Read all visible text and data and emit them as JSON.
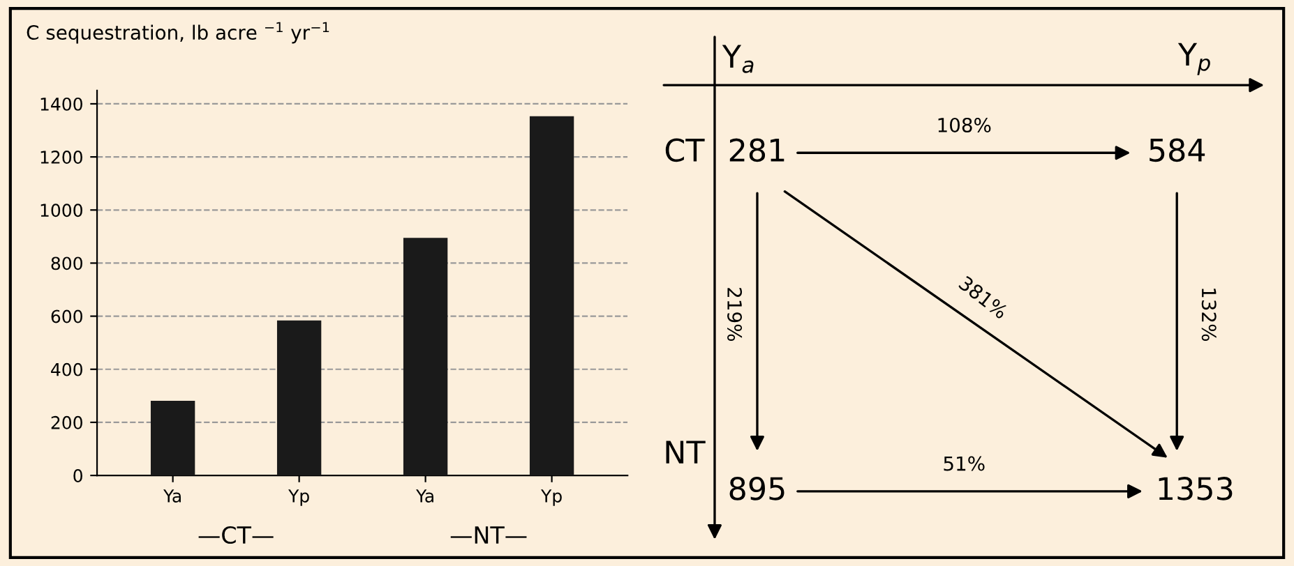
{
  "chart_data": [
    {
      "type": "bar",
      "title": "C sequestration, lb acre $^{−1}$ yr$^{−1}$",
      "categories": [
        "Ya",
        "Yp",
        "Ya",
        "Yp"
      ],
      "values": [
        281,
        584,
        895,
        1353
      ],
      "color": "#1a1a1a",
      "ylim": [
        0,
        1450
      ],
      "yticks": [
        0,
        200,
        400,
        600,
        800,
        1000,
        1200,
        1400
      ],
      "grid": "y",
      "annotations": [
        "—CT—",
        "—NT—"
      ]
    },
    {
      "type": "other",
      "annotations": [
        "Y$_{a}$",
        "Y$_{p}$",
        "CT",
        "NT",
        "281",
        "584",
        "895",
        "1353",
        "108%",
        "219%",
        "381%",
        "132%",
        "51%"
      ]
    }
  ]
}
